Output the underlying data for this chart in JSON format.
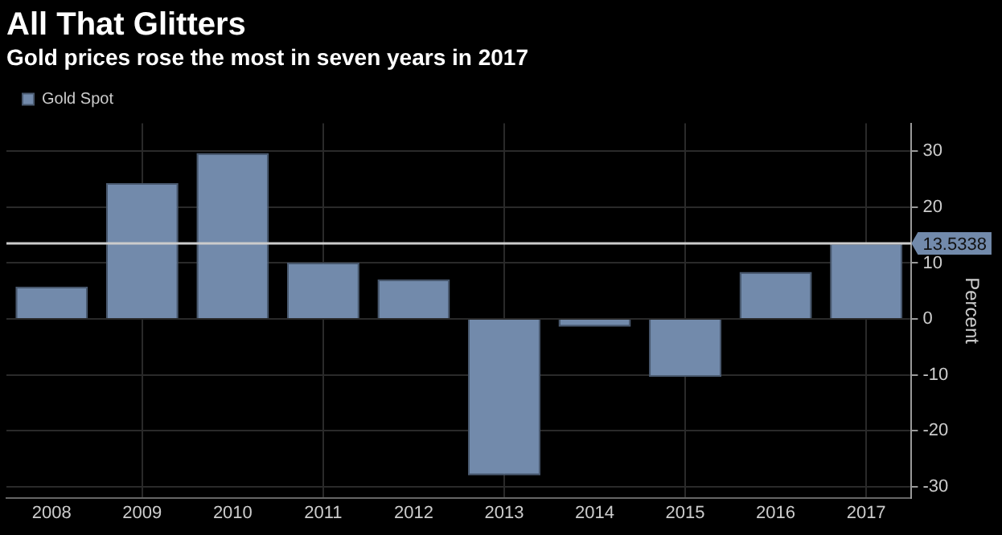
{
  "chart_data": {
    "type": "bar",
    "title": "All That Glitters",
    "subtitle": "Gold prices rose the most in seven years in 2017",
    "ylabel": "Percent",
    "categories": [
      "2008",
      "2009",
      "2010",
      "2011",
      "2012",
      "2013",
      "2014",
      "2015",
      "2016",
      "2017"
    ],
    "series": [
      {
        "name": "Gold Spot",
        "color": "#728aab",
        "values": [
          5.8,
          24.3,
          29.7,
          10.1,
          7.1,
          -28.0,
          -1.4,
          -10.4,
          8.4,
          13.5338
        ]
      }
    ],
    "ylim": [
      -32,
      35
    ],
    "yticks": [
      -30,
      -20,
      -10,
      0,
      10,
      20,
      30
    ],
    "grid": true,
    "legend": "top left",
    "ref_lines": [
      {
        "axis": "y",
        "value": 13.5338,
        "label": "13.5338",
        "color": "#cccccc"
      }
    ]
  }
}
